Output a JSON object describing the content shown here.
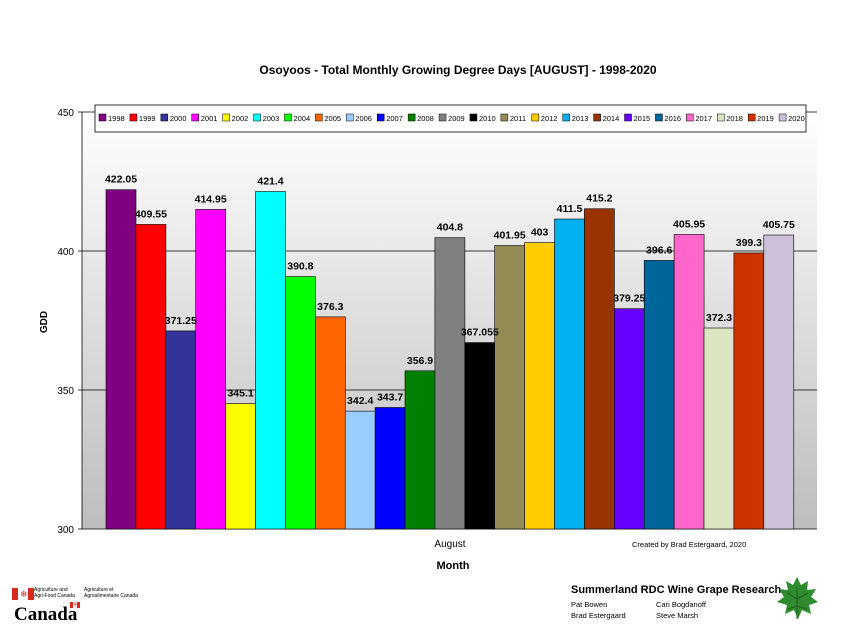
{
  "chart_data": {
    "type": "bar",
    "title": "Osoyoos - Total Monthly Growing Degree Days [AUGUST] - 1998-2020",
    "xlabel": "Month",
    "ylabel": "GDD",
    "category": "August",
    "ylim": [
      300,
      450
    ],
    "yticks": [
      "300",
      "350",
      "400",
      "450"
    ],
    "grid": true,
    "legend_position": "top",
    "credit": "Created by Brad Estergaard, 2020",
    "series": [
      {
        "name": "1998",
        "value": 422.05,
        "label": "422.05",
        "color": "#800080"
      },
      {
        "name": "1999",
        "value": 409.55,
        "label": "409.55",
        "color": "#ff0000"
      },
      {
        "name": "2000",
        "value": 371.25,
        "label": "371.25",
        "color": "#333399"
      },
      {
        "name": "2001",
        "value": 414.95,
        "label": "414.95",
        "color": "#ff00ff"
      },
      {
        "name": "2002",
        "value": 345.1,
        "label": "345.1",
        "color": "#ffff00"
      },
      {
        "name": "2003",
        "value": 421.4,
        "label": "421.4",
        "color": "#00ffff"
      },
      {
        "name": "2004",
        "value": 390.8,
        "label": "390.8",
        "color": "#00ff00"
      },
      {
        "name": "2005",
        "value": 376.3,
        "label": "376.3",
        "color": "#ff6600"
      },
      {
        "name": "2006",
        "value": 342.4,
        "label": "342.4",
        "color": "#99ccff"
      },
      {
        "name": "2007",
        "value": 343.7,
        "label": "343.7",
        "color": "#0000ff"
      },
      {
        "name": "2008",
        "value": 356.9,
        "label": "356.9",
        "color": "#008000"
      },
      {
        "name": "2009",
        "value": 404.8,
        "label": "404.8",
        "color": "#808080"
      },
      {
        "name": "2010",
        "value": 367.055,
        "label": "367.055",
        "color": "#000000"
      },
      {
        "name": "2011",
        "value": 401.95,
        "label": "401.95",
        "color": "#948a54"
      },
      {
        "name": "2012",
        "value": 403,
        "label": "403",
        "color": "#ffcc00"
      },
      {
        "name": "2013",
        "value": 411.5,
        "label": "411.5",
        "color": "#00b0f0"
      },
      {
        "name": "2014",
        "value": 415.2,
        "label": "415.2",
        "color": "#993300"
      },
      {
        "name": "2015",
        "value": 379.25,
        "label": "379.25",
        "color": "#6600ff"
      },
      {
        "name": "2016",
        "value": 396.6,
        "label": "396.6",
        "color": "#006699"
      },
      {
        "name": "2017",
        "value": 405.95,
        "label": "405.95",
        "color": "#ff66cc"
      },
      {
        "name": "2018",
        "value": 372.3,
        "label": "372.3",
        "color": "#d9e5c0"
      },
      {
        "name": "2019",
        "value": 399.3,
        "label": "399.3",
        "color": "#cc3300"
      },
      {
        "name": "2020",
        "value": 405.75,
        "label": "405.75",
        "color": "#ccc0da"
      }
    ]
  },
  "footer": {
    "dept_en": [
      "Agriculture and",
      "Agri-Food Canada"
    ],
    "dept_fr": [
      "Agriculture et",
      "Agroalimentaire Canada"
    ],
    "wordmark": "Canada",
    "research_title": "Summerland RDC Wine Grape Research",
    "people": [
      "Pat Bowen",
      "Cari Bogdanoff",
      "Brad Estergaard",
      "Steve Marsh"
    ],
    "flag_color": "#d52b1e",
    "leaf_color": "#2e8b2e"
  }
}
